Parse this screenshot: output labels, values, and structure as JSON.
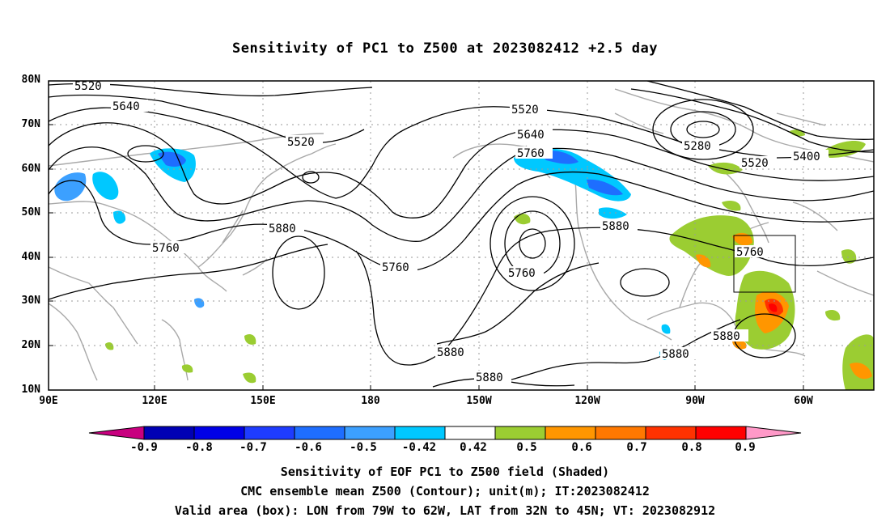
{
  "title": "Sensitivity of PC1 to Z500 at 2023082412 +2.5 day",
  "lat_labels": [
    "80N",
    "70N",
    "60N",
    "50N",
    "40N",
    "30N",
    "20N",
    "10N"
  ],
  "lon_labels": [
    "90E",
    "120E",
    "150E",
    "180",
    "150W",
    "120W",
    "90W",
    "60W"
  ],
  "contour_labels": {
    "c1": "5520",
    "c2": "5640",
    "c3": "5520",
    "c4": "5760",
    "c5": "5880",
    "c6": "5760",
    "c7": "5520",
    "c8": "5640",
    "c9": "5760",
    "c10": "5760",
    "c11": "5880",
    "c12": "5880",
    "c13": "5880",
    "c14": "5280",
    "c15": "5520",
    "c16": "5400",
    "c17": "5760",
    "c18": "5880",
    "c19": "5880"
  },
  "colorbar": {
    "labels": [
      "-0.9",
      "-0.8",
      "-0.7",
      "-0.6",
      "-0.5",
      "-0.42",
      "0.42",
      "0.5",
      "0.6",
      "0.7",
      "0.8",
      "0.9"
    ],
    "colors": [
      "#c8007f",
      "#0000b4",
      "#0000e6",
      "#1e3cff",
      "#1e6eff",
      "#3ca0ff",
      "#00c8ff",
      "#ffffff",
      "#9bcd32",
      "#ff9600",
      "#ff7800",
      "#ff3200",
      "#ff0000",
      "#ff99c8"
    ]
  },
  "footer": {
    "line1": "Sensitivity of EOF PC1 to Z500 field (Shaded)",
    "line2": "CMC ensemble mean Z500 (Contour); unit(m); IT:2023082412",
    "line3": "Valid area (box): LON from 79W to 62W, LAT from 32N to 45N; VT: 2023082912"
  }
}
